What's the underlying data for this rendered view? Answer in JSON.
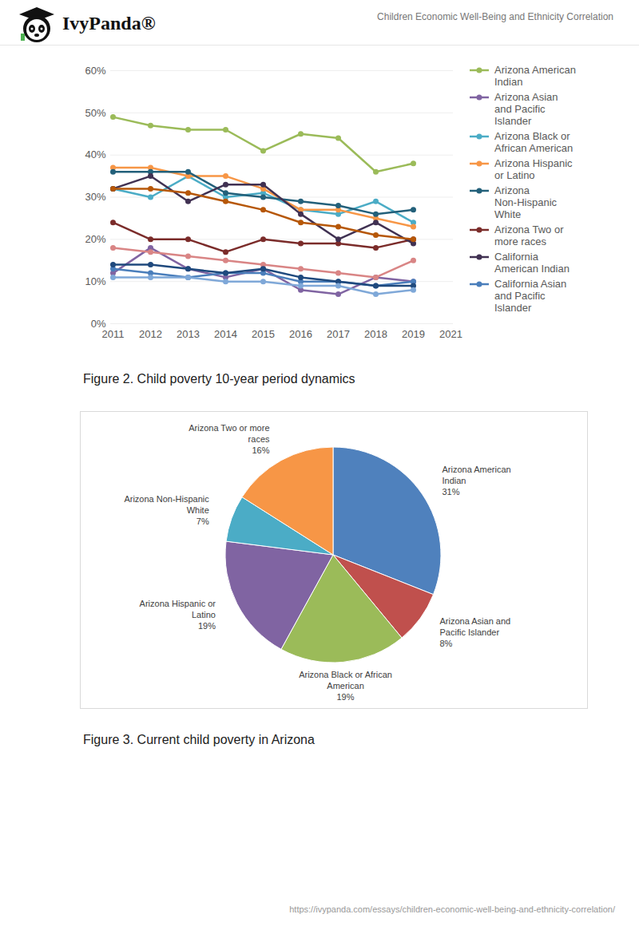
{
  "page": {
    "brand": "IvyPanda®",
    "header_title": "Children Economic Well-Being and Ethnicity Correlation",
    "url": "https://ivypanda.com/essays/children-economic-well-being-and-ethnicity-correlation/"
  },
  "chart_data": [
    {
      "type": "line",
      "caption": "Figure 2. Child poverty 10-year period dynamics",
      "categories": [
        "2011",
        "2012",
        "2013",
        "2014",
        "2015",
        "2016",
        "2017",
        "2018",
        "2019",
        "2021"
      ],
      "series": [
        {
          "name": "Arizona American Indian",
          "color": "#9bbb59",
          "values": [
            49,
            47,
            46,
            46,
            41,
            45,
            44,
            36,
            38,
            null
          ]
        },
        {
          "name": "Arizona Asian and Pacific Islander",
          "color": "#8064a2",
          "values": [
            12,
            18,
            13,
            11,
            13,
            8,
            7,
            11,
            10,
            null
          ]
        },
        {
          "name": "Arizona Black or African American",
          "color": "#4bacc6",
          "values": [
            32,
            30,
            35,
            30,
            31,
            27,
            26,
            29,
            24,
            null
          ]
        },
        {
          "name": "Arizona Hispanic or Latino",
          "color": "#f79646",
          "values": [
            37,
            37,
            35,
            35,
            32,
            27,
            27,
            25,
            23,
            null
          ]
        },
        {
          "name": "Arizona Non-Hispanic White",
          "color": "#23607a",
          "values": [
            36,
            36,
            36,
            31,
            30,
            29,
            28,
            26,
            27,
            null
          ]
        },
        {
          "name": "Arizona Two or more races",
          "color": "#7b2c2a",
          "values": [
            24,
            20,
            20,
            17,
            20,
            19,
            19,
            18,
            20,
            null
          ]
        },
        {
          "name": "California American Indian",
          "color": "#403152",
          "values": [
            32,
            35,
            29,
            33,
            33,
            26,
            20,
            24,
            19,
            null
          ]
        },
        {
          "name": "California Asian and Pacific Islander",
          "color": "#4a7ebb",
          "values": [
            13,
            12,
            11,
            12,
            12,
            10,
            10,
            9,
            10,
            null
          ]
        },
        {
          "name": null,
          "color": "#b65708",
          "values": [
            32,
            32,
            31,
            29,
            27,
            24,
            23,
            21,
            20,
            null
          ]
        },
        {
          "name": null,
          "color": "#d98585",
          "values": [
            18,
            17,
            16,
            15,
            14,
            13,
            12,
            11,
            15,
            null
          ]
        },
        {
          "name": null,
          "color": "#1f497d",
          "values": [
            14,
            14,
            13,
            12,
            13,
            11,
            10,
            9,
            9,
            null
          ]
        },
        {
          "name": null,
          "color": "#7fa8d8",
          "values": [
            11,
            11,
            11,
            10,
            10,
            9,
            9,
            7,
            8,
            null
          ]
        }
      ],
      "ylim": [
        0,
        60
      ],
      "yticks": [
        {
          "value": 0,
          "label": "0%"
        },
        {
          "value": 10,
          "label": "10%"
        },
        {
          "value": 20,
          "label": "20%"
        },
        {
          "value": 30,
          "label": "30%"
        },
        {
          "value": 40,
          "label": "40%"
        },
        {
          "value": 50,
          "label": "50%"
        },
        {
          "value": 60,
          "label": "60%"
        }
      ],
      "grid": true,
      "legend": "right",
      "marker": "circle"
    },
    {
      "type": "pie",
      "caption": "Figure 3. Current child poverty in Arizona",
      "categories": [
        "Arizona American Indian",
        "Arizona Asian and Pacific Islander",
        "Arizona Black or African American",
        "Arizona Hispanic or Latino",
        "Arizona Non-Hispanic White",
        "Arizona Two or more races"
      ],
      "values": [
        31,
        8,
        19,
        19,
        7,
        16
      ],
      "value_labels": [
        "31%",
        "8%",
        "19%",
        "19%",
        "7%",
        "16%"
      ],
      "colors": [
        "#4f81bd",
        "#c0504d",
        "#9bbb59",
        "#8064a2",
        "#4bacc6",
        "#f79646"
      ],
      "data_labels": true
    }
  ]
}
